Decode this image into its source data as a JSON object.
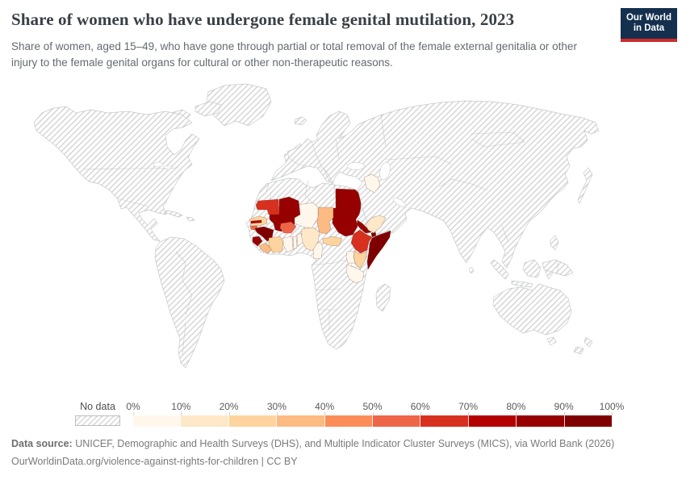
{
  "header": {
    "title": "Share of women who have undergone female genital mutilation, 2023",
    "subtitle": "Share of women, aged 15–49, who have gone through partial or total removal of the female external genitalia or other injury to the female genital organs for cultural or other non-therapeutic reasons.",
    "logo": {
      "line1": "Our World",
      "line2": "in Data"
    }
  },
  "legend": {
    "no_data_label": "No data",
    "ticks": [
      "0%",
      "10%",
      "20%",
      "30%",
      "40%",
      "50%",
      "60%",
      "70%",
      "80%",
      "90%",
      "100%"
    ],
    "bucket_colors": [
      "#fff7ec",
      "#fee8c8",
      "#fdd49e",
      "#fdbb84",
      "#fc8d59",
      "#ef6548",
      "#d7301f",
      "#b30000",
      "#970000",
      "#7f0000"
    ]
  },
  "map": {
    "no_data_hatch_color": "#d6d6d6",
    "border_color": "#c6c9cb",
    "countries": [
      {
        "id": "mauritania",
        "name": "Mauritania",
        "bucket": "60–70%",
        "color": "#d7301f"
      },
      {
        "id": "senegal",
        "name": "Senegal",
        "bucket": "20–30%",
        "color": "#fdd49e"
      },
      {
        "id": "gambia",
        "name": "Gambia",
        "bucket": "70–80%",
        "color": "#b30000"
      },
      {
        "id": "guinea-bissau",
        "name": "Guinea-Bissau",
        "bucket": "50–60%",
        "color": "#ef6548"
      },
      {
        "id": "guinea",
        "name": "Guinea",
        "bucket": "90–100%",
        "color": "#7f0000"
      },
      {
        "id": "sierra-leone",
        "name": "Sierra Leone",
        "bucket": "80–90%",
        "color": "#970000"
      },
      {
        "id": "liberia",
        "name": "Liberia",
        "bucket": "30–40%",
        "color": "#fdbb84"
      },
      {
        "id": "cote-divoire",
        "name": "Cote d'Ivoire",
        "bucket": "20–30%",
        "color": "#fdd49e"
      },
      {
        "id": "ghana",
        "name": "Ghana",
        "bucket": "0–10%",
        "color": "#fff7ec"
      },
      {
        "id": "togo",
        "name": "Togo",
        "bucket": "0–10%",
        "color": "#fff7ec"
      },
      {
        "id": "benin",
        "name": "Benin",
        "bucket": "0–10%",
        "color": "#fff7ec"
      },
      {
        "id": "burkina-faso",
        "name": "Burkina Faso",
        "bucket": "50–60%",
        "color": "#ef6548"
      },
      {
        "id": "mali",
        "name": "Mali",
        "bucket": "80–90%",
        "color": "#970000"
      },
      {
        "id": "niger",
        "name": "Niger",
        "bucket": "0–10%",
        "color": "#fff7ec"
      },
      {
        "id": "nigeria",
        "name": "Nigeria",
        "bucket": "10–20%",
        "color": "#fee8c8"
      },
      {
        "id": "chad",
        "name": "Chad",
        "bucket": "30–40%",
        "color": "#fdbb84"
      },
      {
        "id": "cameroon",
        "name": "Cameroon",
        "bucket": "0–10%",
        "color": "#fff7ec"
      },
      {
        "id": "central-african-republic",
        "name": "Central African Republic",
        "bucket": "20–30%",
        "color": "#fdd49e"
      },
      {
        "id": "egypt",
        "name": "Egypt",
        "bucket": "80–90%",
        "color": "#970000"
      },
      {
        "id": "sudan",
        "name": "Sudan",
        "bucket": "80–90%",
        "color": "#970000"
      },
      {
        "id": "eritrea",
        "name": "Eritrea",
        "bucket": "80–90%",
        "color": "#970000"
      },
      {
        "id": "djibouti",
        "name": "Djibouti",
        "bucket": "90–100%",
        "color": "#7f0000"
      },
      {
        "id": "ethiopia",
        "name": "Ethiopia",
        "bucket": "60–70%",
        "color": "#d7301f"
      },
      {
        "id": "somalia",
        "name": "Somalia",
        "bucket": "90–100%",
        "color": "#7f0000"
      },
      {
        "id": "kenya",
        "name": "Kenya",
        "bucket": "20–30%",
        "color": "#fdd49e"
      },
      {
        "id": "uganda",
        "name": "Uganda",
        "bucket": "0–10%",
        "color": "#fff7ec"
      },
      {
        "id": "tanzania",
        "name": "Tanzania",
        "bucket": "0–10%",
        "color": "#fff7ec"
      },
      {
        "id": "iraq",
        "name": "Iraq",
        "bucket": "0–10%",
        "color": "#fff7ec"
      },
      {
        "id": "yemen",
        "name": "Yemen",
        "bucket": "10–20%",
        "color": "#fee8c8"
      }
    ]
  },
  "footer": {
    "source_label": "Data source:",
    "source_text": " UNICEF, Demographic and Health Surveys (DHS), and Multiple Indicator Cluster Surveys (MICS), via World Bank (2026)",
    "citation": "OurWorldinData.org/violence-against-rights-for-children | CC BY"
  }
}
